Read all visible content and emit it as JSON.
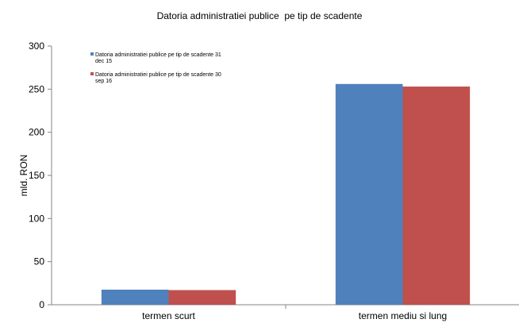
{
  "chart_data": {
    "type": "bar",
    "title": "Datoria administratiei publice  pe tip de scadente",
    "xlabel": "",
    "ylabel": "mld. RON",
    "ylim": [
      0,
      300
    ],
    "yticks": [
      0,
      50,
      100,
      150,
      200,
      250,
      300
    ],
    "grid": false,
    "legend_position": "top-left",
    "categories": [
      "termen scurt",
      "termen mediu si lung"
    ],
    "series": [
      {
        "name": "Datoria administratiei publice pe tip de scadente 31 dec 15",
        "legend_lines": [
          "Datoria administratiei publice pe tip de scadente 31",
          "dec 15"
        ],
        "color": "#4f81bd",
        "values": [
          17.5,
          256
        ]
      },
      {
        "name": "Datoria administratiei publice pe tip de scadente 30 sep 16",
        "legend_lines": [
          "Datoria administratiei publice pe tip de scadente 30",
          "sep 16"
        ],
        "color": "#c0504d",
        "values": [
          17,
          253
        ]
      }
    ]
  }
}
